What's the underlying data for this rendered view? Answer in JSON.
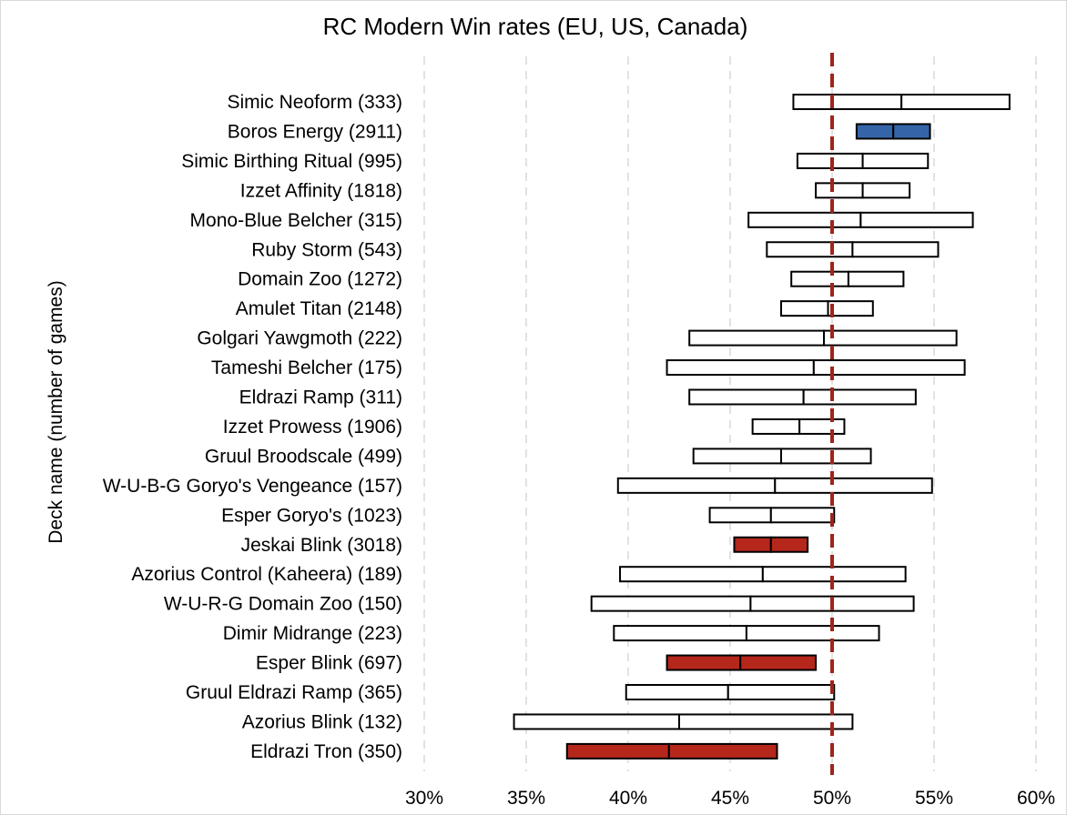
{
  "chart_data": {
    "type": "boxplot-horizontal",
    "title": "RC Modern Win rates (EU, US, Canada)",
    "xlabel": "",
    "ylabel": "Deck name (number of games)",
    "xlim": [
      30,
      60
    ],
    "xticks": [
      30,
      35,
      40,
      45,
      50,
      55,
      60
    ],
    "xtick_labels": [
      "30%",
      "35%",
      "40%",
      "45%",
      "50%",
      "55%",
      "60%"
    ],
    "grid": "vertical dashed",
    "reference_line": {
      "value": 50,
      "color": "#a0241c",
      "style": "dashed"
    },
    "colors": {
      "neutral": "#ffffff",
      "above": "#3565a8",
      "below": "#b5261b",
      "stroke": "#000000",
      "grid": "#d9d9d9"
    },
    "categories": [
      {
        "label": "Simic Neoform (333)",
        "low": 48.1,
        "mid": 53.4,
        "high": 58.7,
        "fill": "neutral"
      },
      {
        "label": "Boros Energy (2911)",
        "low": 51.2,
        "mid": 53.0,
        "high": 54.8,
        "fill": "above"
      },
      {
        "label": "Simic Birthing Ritual (995)",
        "low": 48.3,
        "mid": 51.5,
        "high": 54.7,
        "fill": "neutral"
      },
      {
        "label": "Izzet Affinity (1818)",
        "low": 49.2,
        "mid": 51.5,
        "high": 53.8,
        "fill": "neutral"
      },
      {
        "label": "Mono-Blue Belcher (315)",
        "low": 45.9,
        "mid": 51.4,
        "high": 56.9,
        "fill": "neutral"
      },
      {
        "label": "Ruby Storm (543)",
        "low": 46.8,
        "mid": 51.0,
        "high": 55.2,
        "fill": "neutral"
      },
      {
        "label": "Domain Zoo (1272)",
        "low": 48.0,
        "mid": 50.8,
        "high": 53.5,
        "fill": "neutral"
      },
      {
        "label": "Amulet Titan (2148)",
        "low": 47.5,
        "mid": 49.8,
        "high": 52.0,
        "fill": "neutral"
      },
      {
        "label": "Golgari Yawgmoth (222)",
        "low": 43.0,
        "mid": 49.6,
        "high": 56.1,
        "fill": "neutral"
      },
      {
        "label": "Tameshi Belcher (175)",
        "low": 41.9,
        "mid": 49.1,
        "high": 56.5,
        "fill": "neutral"
      },
      {
        "label": "Eldrazi Ramp (311)",
        "low": 43.0,
        "mid": 48.6,
        "high": 54.1,
        "fill": "neutral"
      },
      {
        "label": "Izzet Prowess (1906)",
        "low": 46.1,
        "mid": 48.4,
        "high": 50.6,
        "fill": "neutral"
      },
      {
        "label": "Gruul Broodscale (499)",
        "low": 43.2,
        "mid": 47.5,
        "high": 51.9,
        "fill": "neutral"
      },
      {
        "label": "W-U-B-G Goryo's Vengeance (157)",
        "low": 39.5,
        "mid": 47.2,
        "high": 54.9,
        "fill": "neutral"
      },
      {
        "label": "Esper Goryo's (1023)",
        "low": 44.0,
        "mid": 47.0,
        "high": 50.1,
        "fill": "neutral"
      },
      {
        "label": "Jeskai Blink (3018)",
        "low": 45.2,
        "mid": 47.0,
        "high": 48.8,
        "fill": "below"
      },
      {
        "label": "Azorius Control (Kaheera) (189)",
        "low": 39.6,
        "mid": 46.6,
        "high": 53.6,
        "fill": "neutral"
      },
      {
        "label": "W-U-R-G Domain Zoo (150)",
        "low": 38.2,
        "mid": 46.0,
        "high": 54.0,
        "fill": "neutral"
      },
      {
        "label": "Dimir Midrange (223)",
        "low": 39.3,
        "mid": 45.8,
        "high": 52.3,
        "fill": "neutral"
      },
      {
        "label": "Esper Blink (697)",
        "low": 41.9,
        "mid": 45.5,
        "high": 49.2,
        "fill": "below"
      },
      {
        "label": "Gruul Eldrazi Ramp (365)",
        "low": 39.9,
        "mid": 44.9,
        "high": 50.1,
        "fill": "neutral"
      },
      {
        "label": "Azorius Blink (132)",
        "low": 34.4,
        "mid": 42.5,
        "high": 51.0,
        "fill": "neutral"
      },
      {
        "label": "Eldrazi Tron (350)",
        "low": 37.0,
        "mid": 42.0,
        "high": 47.3,
        "fill": "below"
      }
    ]
  }
}
